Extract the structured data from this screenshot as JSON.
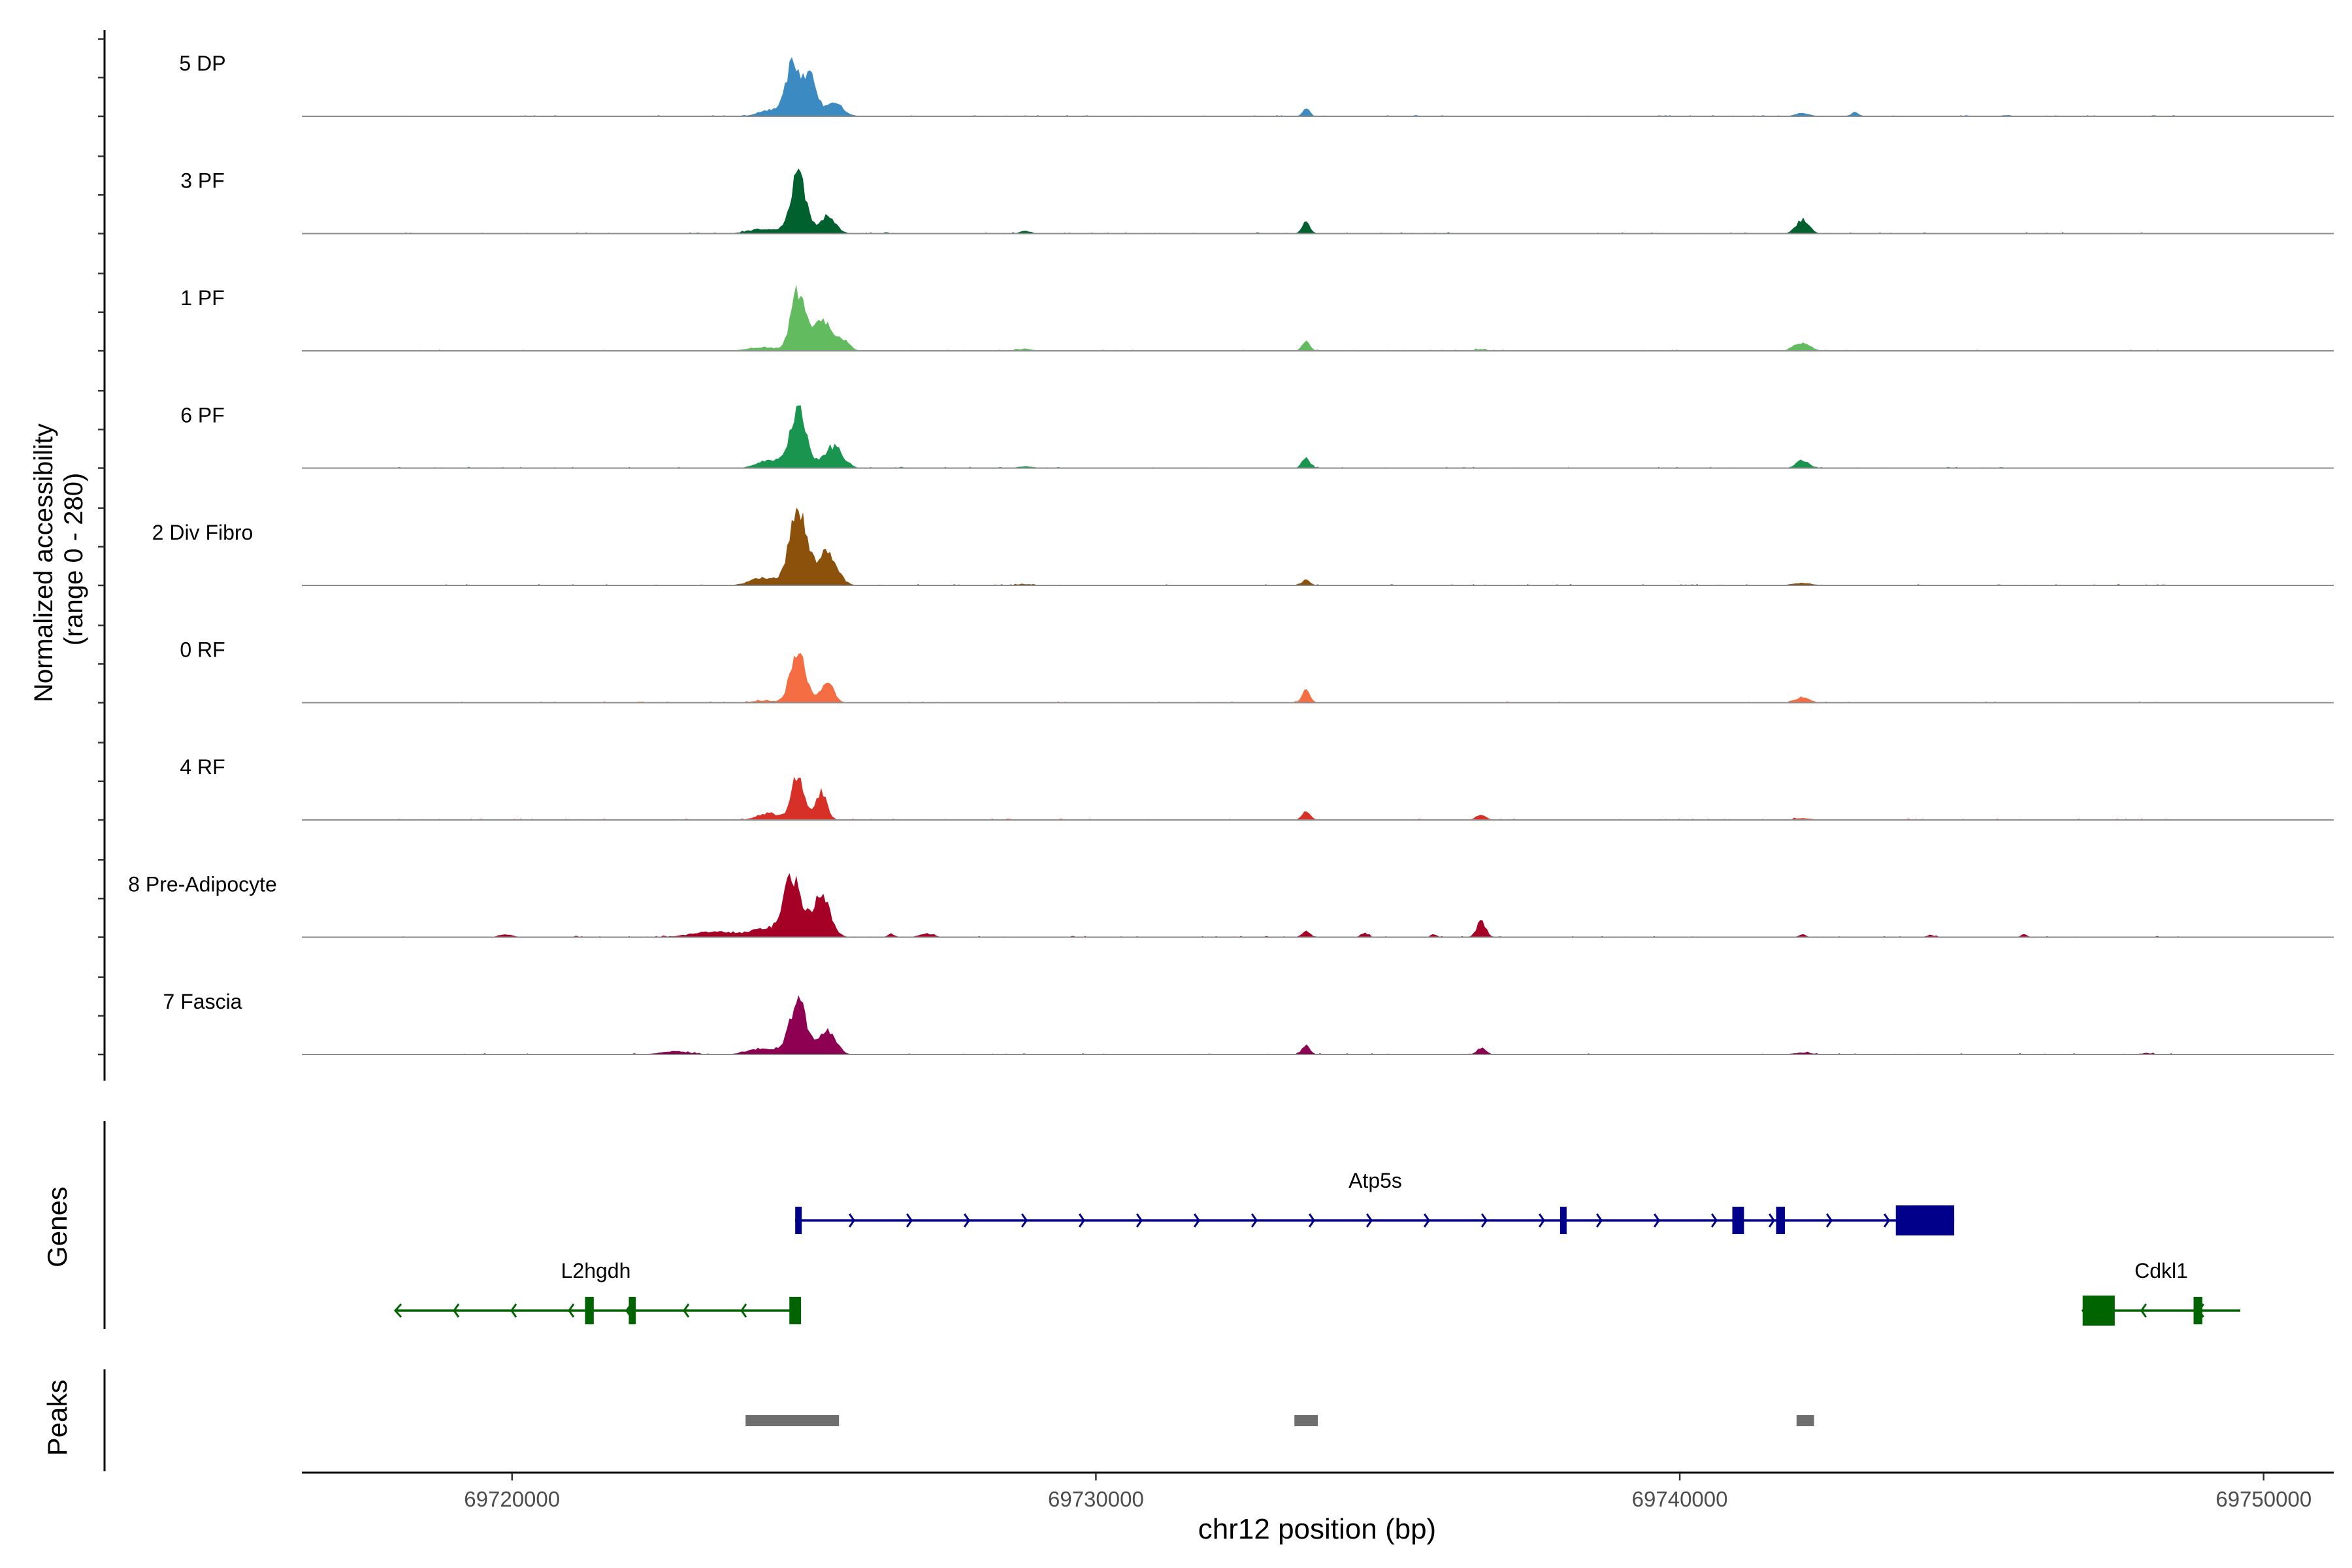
{
  "chart_data": {
    "type": "area",
    "chromosome": "chr12",
    "ylabel_line1": "Normalized accessibility",
    "ylabel_line2": "(range 0 - 280)",
    "ylim": [
      0,
      280
    ],
    "xlabel": "chr12 position (bp)",
    "xlim": [
      69716400,
      69751200
    ],
    "x_ticks": [
      69720000,
      69730000,
      69740000,
      69750000
    ],
    "x_tick_labels": [
      "69720000",
      "69730000",
      "69740000",
      "69750000"
    ],
    "grid": false,
    "series": [
      {
        "name": "5 DP",
        "color": "#3b8bc2",
        "peaks": [
          {
            "x": 69724800,
            "y": 165,
            "sd": 120
          },
          {
            "x": 69725100,
            "y": 120,
            "sd": 110
          },
          {
            "x": 69725500,
            "y": 45,
            "sd": 160
          },
          {
            "x": 69724400,
            "y": 20,
            "sd": 180
          },
          {
            "x": 69733600,
            "y": 28,
            "sd": 60
          },
          {
            "x": 69742100,
            "y": 10,
            "sd": 120
          },
          {
            "x": 69743000,
            "y": 12,
            "sd": 70
          },
          {
            "x": 69745600,
            "y": 4,
            "sd": 80
          }
        ]
      },
      {
        "name": "3 PF",
        "color": "#00612f",
        "peaks": [
          {
            "x": 69724900,
            "y": 190,
            "sd": 130
          },
          {
            "x": 69725400,
            "y": 55,
            "sd": 140
          },
          {
            "x": 69724300,
            "y": 15,
            "sd": 250
          },
          {
            "x": 69733600,
            "y": 35,
            "sd": 70
          },
          {
            "x": 69742100,
            "y": 45,
            "sd": 110
          },
          {
            "x": 69728800,
            "y": 8,
            "sd": 100
          }
        ]
      },
      {
        "name": "1 PF",
        "color": "#62bb5e",
        "peaks": [
          {
            "x": 69724900,
            "y": 195,
            "sd": 120
          },
          {
            "x": 69725300,
            "y": 90,
            "sd": 130
          },
          {
            "x": 69725600,
            "y": 45,
            "sd": 140
          },
          {
            "x": 69724300,
            "y": 12,
            "sd": 250
          },
          {
            "x": 69733600,
            "y": 30,
            "sd": 70
          },
          {
            "x": 69742100,
            "y": 25,
            "sd": 140
          },
          {
            "x": 69728800,
            "y": 6,
            "sd": 120
          },
          {
            "x": 69736600,
            "y": 5,
            "sd": 100
          }
        ]
      },
      {
        "name": "6 PF",
        "color": "#1a9550",
        "peaks": [
          {
            "x": 69724900,
            "y": 185,
            "sd": 140
          },
          {
            "x": 69725500,
            "y": 70,
            "sd": 160
          },
          {
            "x": 69724400,
            "y": 25,
            "sd": 200
          },
          {
            "x": 69733600,
            "y": 33,
            "sd": 70
          },
          {
            "x": 69742100,
            "y": 25,
            "sd": 110
          },
          {
            "x": 69728800,
            "y": 6,
            "sd": 120
          }
        ]
      },
      {
        "name": "2 Div Fibro",
        "color": "#8c510a",
        "peaks": [
          {
            "x": 69724900,
            "y": 240,
            "sd": 150
          },
          {
            "x": 69725400,
            "y": 110,
            "sd": 160
          },
          {
            "x": 69724300,
            "y": 25,
            "sd": 220
          },
          {
            "x": 69733600,
            "y": 18,
            "sd": 70
          },
          {
            "x": 69742100,
            "y": 8,
            "sd": 160
          },
          {
            "x": 69728800,
            "y": 4,
            "sd": 150
          }
        ]
      },
      {
        "name": "0 RF",
        "color": "#f46d43",
        "peaks": [
          {
            "x": 69724900,
            "y": 160,
            "sd": 130
          },
          {
            "x": 69725400,
            "y": 65,
            "sd": 110
          },
          {
            "x": 69724300,
            "y": 6,
            "sd": 200
          },
          {
            "x": 69733600,
            "y": 40,
            "sd": 70
          },
          {
            "x": 69742100,
            "y": 18,
            "sd": 120
          }
        ]
      },
      {
        "name": "4 RF",
        "color": "#d73027",
        "peaks": [
          {
            "x": 69724900,
            "y": 145,
            "sd": 110
          },
          {
            "x": 69725300,
            "y": 90,
            "sd": 90
          },
          {
            "x": 69724400,
            "y": 20,
            "sd": 200
          },
          {
            "x": 69733600,
            "y": 30,
            "sd": 70
          },
          {
            "x": 69736600,
            "y": 15,
            "sd": 90
          },
          {
            "x": 69742100,
            "y": 5,
            "sd": 150
          }
        ]
      },
      {
        "name": "8 Pre-Adipocyte",
        "color": "#a50026",
        "peaks": [
          {
            "x": 69724800,
            "y": 190,
            "sd": 160
          },
          {
            "x": 69725300,
            "y": 130,
            "sd": 150
          },
          {
            "x": 69723500,
            "y": 18,
            "sd": 400
          },
          {
            "x": 69724300,
            "y": 25,
            "sd": 200
          },
          {
            "x": 69736600,
            "y": 50,
            "sd": 80
          },
          {
            "x": 69733600,
            "y": 20,
            "sd": 70
          },
          {
            "x": 69734600,
            "y": 14,
            "sd": 60
          },
          {
            "x": 69727100,
            "y": 12,
            "sd": 120
          },
          {
            "x": 69726500,
            "y": 10,
            "sd": 60
          },
          {
            "x": 69719900,
            "y": 8,
            "sd": 120
          },
          {
            "x": 69742100,
            "y": 10,
            "sd": 60
          },
          {
            "x": 69745900,
            "y": 10,
            "sd": 50
          },
          {
            "x": 69744300,
            "y": 6,
            "sd": 80
          },
          {
            "x": 69735800,
            "y": 8,
            "sd": 50
          }
        ]
      },
      {
        "name": "7 Fascia",
        "color": "#8e0152",
        "peaks": [
          {
            "x": 69724900,
            "y": 175,
            "sd": 140
          },
          {
            "x": 69725400,
            "y": 80,
            "sd": 140
          },
          {
            "x": 69724300,
            "y": 20,
            "sd": 250
          },
          {
            "x": 69722800,
            "y": 10,
            "sd": 250
          },
          {
            "x": 69733600,
            "y": 28,
            "sd": 70
          },
          {
            "x": 69736600,
            "y": 20,
            "sd": 80
          },
          {
            "x": 69742100,
            "y": 6,
            "sd": 150
          },
          {
            "x": 69748000,
            "y": 5,
            "sd": 80
          }
        ]
      }
    ],
    "genes": [
      {
        "name": "Atp5s",
        "strand": "+",
        "color": "#00008b",
        "start": 69724850,
        "end": 69744700,
        "exons": [
          [
            69724850,
            69724900
          ],
          [
            69737950,
            69738050
          ],
          [
            69740900,
            69741100
          ],
          [
            69741650,
            69741800
          ],
          [
            69743700,
            69744700
          ]
        ]
      },
      {
        "name": "L2hgdh",
        "strand": "-",
        "color": "#006400",
        "start": 69718000,
        "end": 69724950,
        "exons": [
          [
            69721250,
            69721400
          ],
          [
            69722000,
            69722120
          ],
          [
            69724750,
            69724950
          ]
        ]
      },
      {
        "name": "Cdkl1",
        "strand": "-",
        "color": "#006400",
        "start": 69746900,
        "end": 69749600,
        "exons": [
          [
            69746900,
            69747450
          ],
          [
            69748800,
            69748950
          ]
        ]
      }
    ],
    "gene_track_label": "Genes",
    "peak_track_label": "Peaks",
    "peak_color": "#6e6e6e",
    "peak_regions": [
      [
        69724000,
        69725600
      ],
      [
        69733400,
        69733800
      ],
      [
        69742000,
        69742300
      ]
    ]
  }
}
